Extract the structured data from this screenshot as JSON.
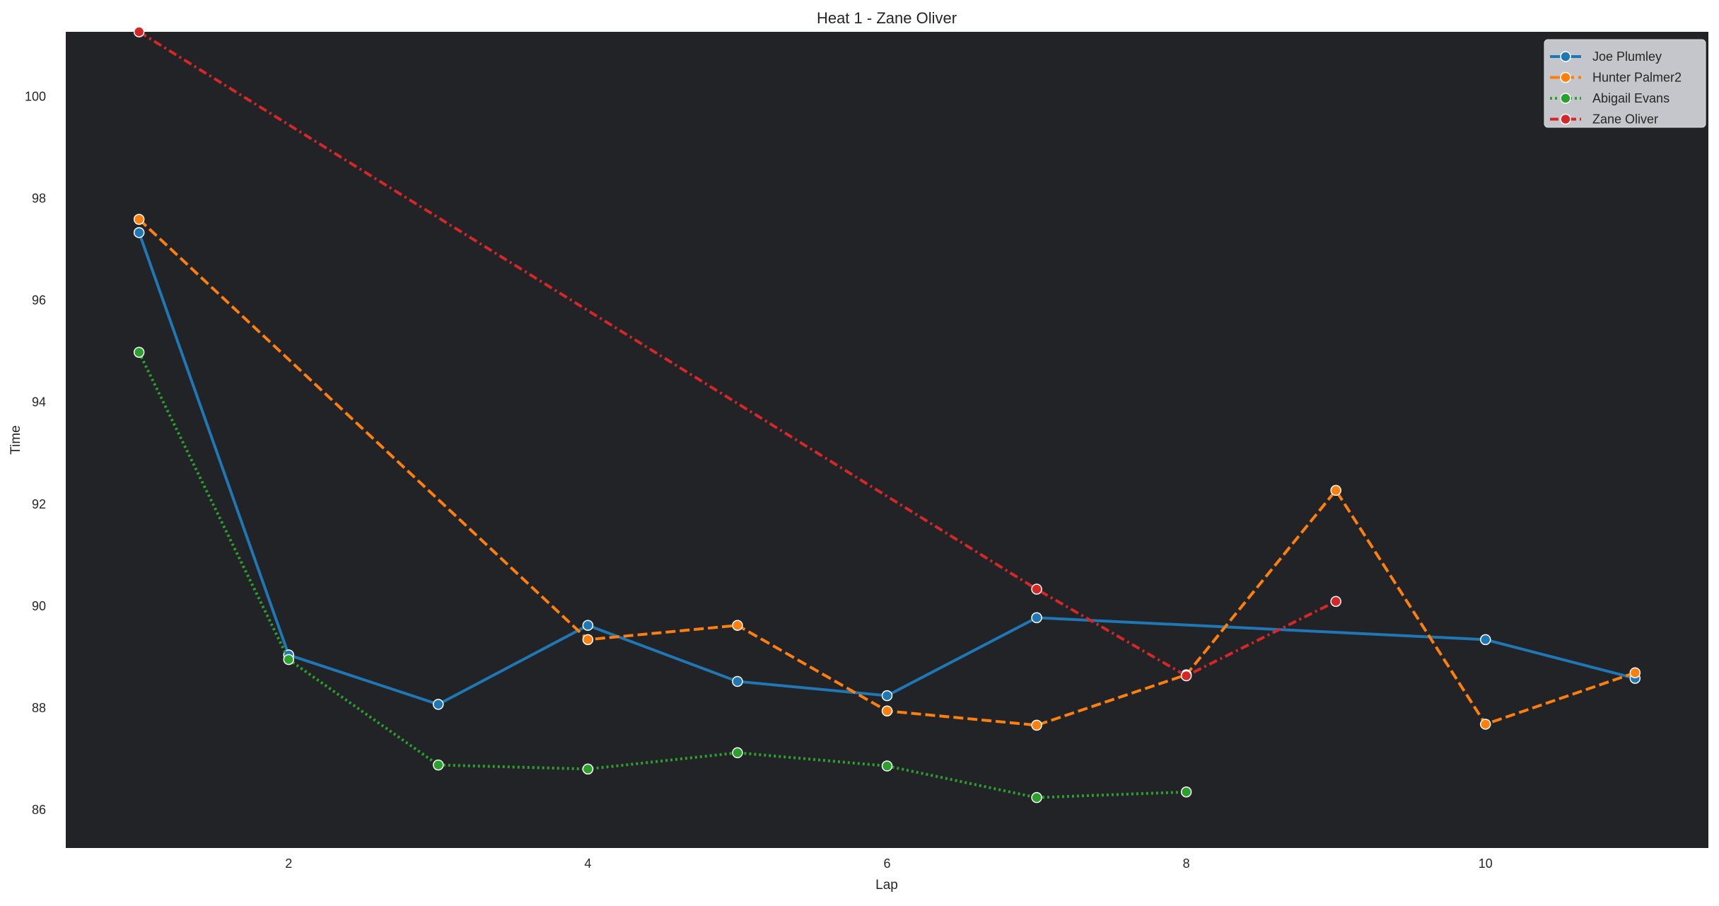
{
  "chart_data": {
    "type": "line",
    "title": "Heat 1 - Zane Oliver",
    "xlabel": "Lap",
    "ylabel": "Time",
    "xlim": [
      0.51,
      11.49
    ],
    "ylim": [
      85.25,
      101.27
    ],
    "xticks": [
      2,
      4,
      6,
      8,
      10
    ],
    "yticks": [
      86,
      88,
      90,
      92,
      94,
      96,
      98,
      100
    ],
    "grid": false,
    "legend_position": "top-right",
    "plot_background": "#212327",
    "series": [
      {
        "name": "Joe Plumley",
        "color": "#1f77b4",
        "linestyle": "solid",
        "x": [
          1,
          2,
          3,
          4,
          5,
          6,
          7,
          10,
          11
        ],
        "y": [
          97.33,
          89.04,
          88.07,
          89.62,
          88.52,
          88.24,
          89.77,
          89.34,
          88.58
        ]
      },
      {
        "name": "Hunter Palmer2",
        "color": "#ff7f0e",
        "linestyle": "dashed",
        "x": [
          1,
          4,
          5,
          6,
          7,
          8,
          9,
          10,
          11
        ],
        "y": [
          97.59,
          89.34,
          89.62,
          87.94,
          87.66,
          88.65,
          92.27,
          87.68,
          88.69
        ]
      },
      {
        "name": "Abigail Evans",
        "color": "#2ca02c",
        "linestyle": "dotted",
        "x": [
          1,
          2,
          3,
          4,
          5,
          6,
          7,
          8
        ],
        "y": [
          94.98,
          88.95,
          86.88,
          86.8,
          87.12,
          86.86,
          86.24,
          86.35
        ]
      },
      {
        "name": "Zane Oliver",
        "color": "#d62728",
        "linestyle": "dashdot",
        "x": [
          1,
          7,
          8,
          9
        ],
        "y": [
          101.27,
          90.33,
          88.63,
          90.09
        ]
      }
    ]
  }
}
